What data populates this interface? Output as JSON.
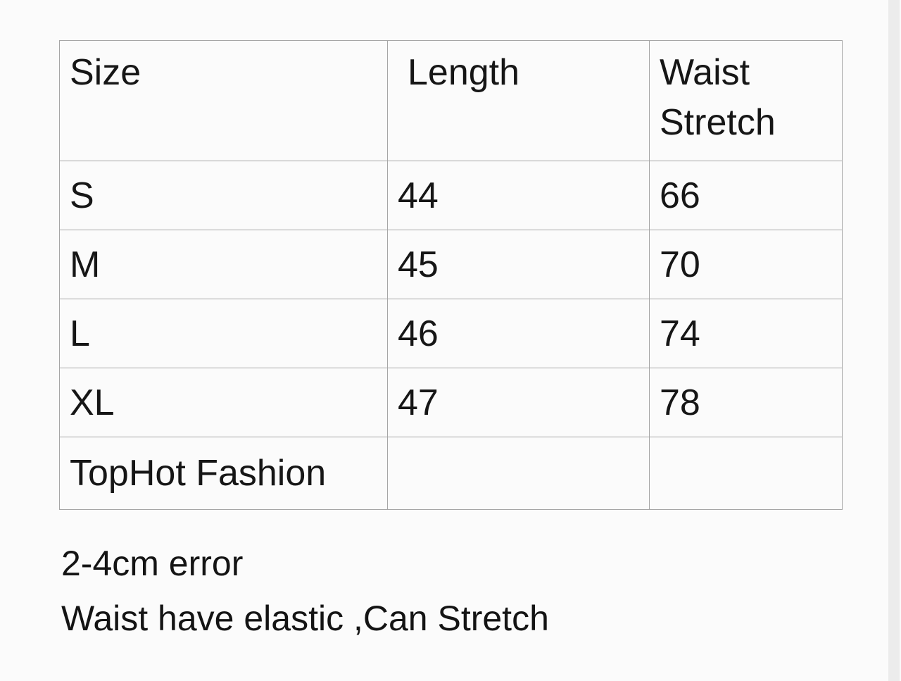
{
  "table": {
    "headers": [
      "Size",
      "Length",
      "Waist Stretch"
    ],
    "rows": [
      [
        "S",
        "44",
        "66"
      ],
      [
        "M",
        "45",
        "70"
      ],
      [
        "L",
        "46",
        "74"
      ],
      [
        "XL",
        "47",
        "78"
      ],
      [
        "TopHot Fashion",
        "",
        ""
      ]
    ]
  },
  "notes": {
    "error_tolerance": "2-4cm error",
    "elastic": "Waist have elastic ,Can Stretch"
  },
  "colors": {
    "background": "#fbfbfb",
    "table_border": "#a6a6a6",
    "text": "#161616",
    "right_edge_strip": "#ececec"
  }
}
